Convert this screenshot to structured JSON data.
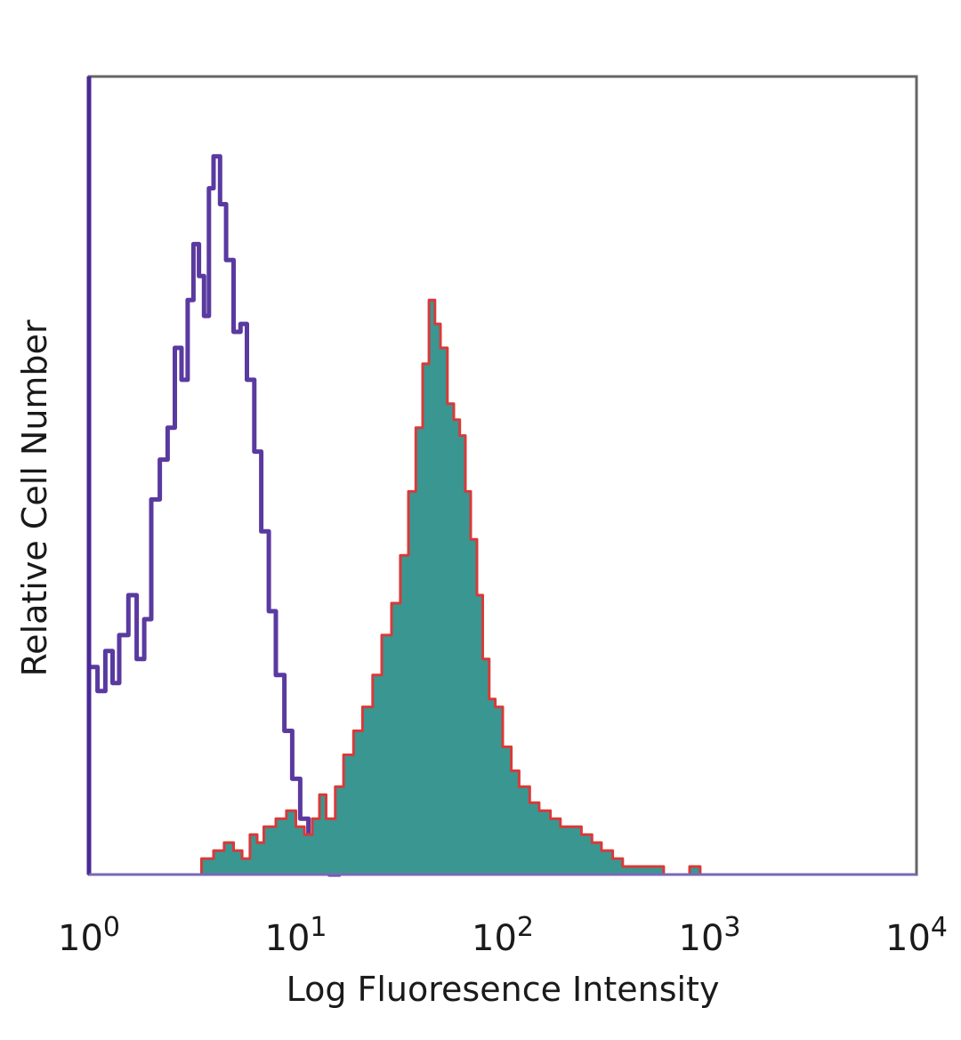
{
  "chart_data": {
    "type": "area",
    "title": "",
    "xlabel": "Log Fluoresence Intensity",
    "ylabel": "Relative Cell Number",
    "xscale": "log",
    "xlim": [
      1,
      10000
    ],
    "ylim": [
      0,
      100
    ],
    "x_ticks": [
      {
        "base": "10",
        "exp": "0",
        "value": 1
      },
      {
        "base": "10",
        "exp": "1",
        "value": 10
      },
      {
        "base": "10",
        "exp": "2",
        "value": 100
      },
      {
        "base": "10",
        "exp": "3",
        "value": 1000
      },
      {
        "base": "10",
        "exp": "4",
        "value": 10000
      }
    ],
    "y_ticks_shown": false,
    "grid": false,
    "legend": "none",
    "series": [
      {
        "style": "outline",
        "color": "#5a3aa0",
        "x": [
          1.0,
          1.1,
          1.2,
          1.3,
          1.4,
          1.55,
          1.7,
          1.85,
          2.0,
          2.2,
          2.4,
          2.6,
          2.8,
          3.0,
          3.2,
          3.4,
          3.6,
          3.8,
          4.0,
          4.3,
          4.6,
          5.0,
          5.4,
          5.8,
          6.3,
          6.8,
          7.4,
          8.0,
          8.8,
          9.6,
          10.5,
          11.5,
          12.5,
          13.5,
          14.5,
          15.5
        ],
        "y": [
          26,
          23,
          28,
          24,
          30,
          35,
          27,
          32,
          47,
          52,
          56,
          66,
          62,
          72,
          79,
          75,
          70,
          86,
          90,
          84,
          77,
          68,
          69,
          62,
          53,
          43,
          33,
          25,
          18,
          12,
          7,
          4,
          2,
          1,
          0,
          0
        ]
      },
      {
        "style": "filled",
        "color": "#3a9690",
        "edge_color": "#d83a3a",
        "x": [
          3.0,
          3.5,
          4.0,
          4.5,
          5.0,
          5.5,
          6.0,
          6.5,
          7.0,
          8.0,
          9.0,
          10.0,
          11.0,
          12.0,
          13.0,
          14.0,
          15.5,
          17.0,
          19.0,
          21.0,
          23.5,
          26.0,
          29.0,
          32.0,
          35.0,
          38.0,
          41.0,
          44.0,
          47.0,
          50.0,
          54.0,
          58.0,
          62.0,
          66.0,
          70.0,
          75.0,
          80.0,
          86.0,
          92.0,
          100.0,
          110.0,
          120.0,
          135.0,
          150.0,
          170.0,
          190.0,
          215.0,
          240.0,
          270.0,
          300.0,
          340.0,
          380.0,
          430.0,
          480.0,
          540.0,
          600.0,
          700.0,
          800.0,
          900.0,
          1000.0,
          1100.0
        ],
        "y": [
          0,
          2,
          3,
          4,
          3,
          2,
          5,
          4,
          6,
          7,
          8,
          6,
          5,
          7,
          10,
          7,
          11,
          15,
          18,
          21,
          25,
          30,
          34,
          40,
          48,
          56,
          64,
          72,
          69,
          66,
          59,
          57,
          55,
          48,
          42,
          35,
          27,
          22,
          21,
          16,
          13,
          11,
          9,
          8,
          7,
          6,
          6,
          5,
          4,
          3,
          2,
          1,
          1,
          1,
          1,
          0,
          0,
          1,
          0,
          0,
          0
        ]
      }
    ]
  }
}
